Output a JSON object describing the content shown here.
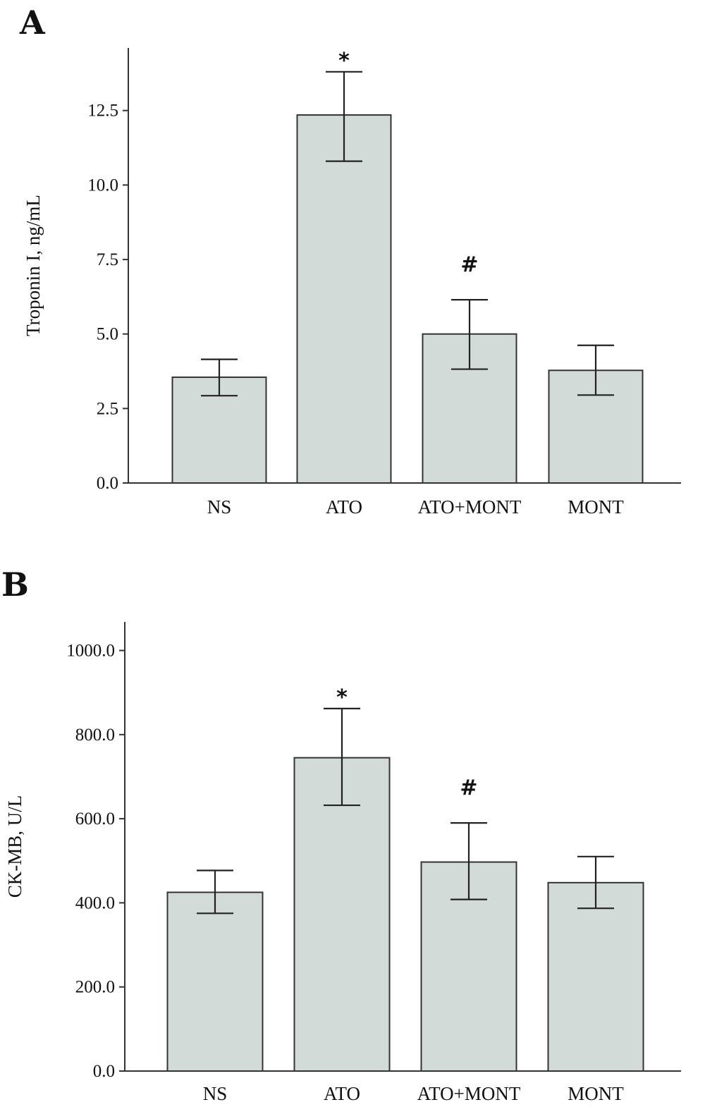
{
  "chart_data": [
    {
      "type": "bar",
      "panel": "A",
      "categories": [
        "NS",
        "ATO",
        "ATO+MONT",
        "MONT"
      ],
      "values": [
        3.55,
        12.35,
        5.0,
        3.78
      ],
      "errors": [
        [
          2.93,
          4.15
        ],
        [
          10.8,
          13.8
        ],
        [
          3.82,
          6.15
        ],
        [
          2.95,
          4.62
        ]
      ],
      "annotations": [
        "",
        "*",
        "#",
        ""
      ],
      "ylabel": "Troponin I, ng/mL",
      "xlabel": "",
      "ylim": [
        0,
        14.6
      ],
      "yticks": [
        0.0,
        2.5,
        5.0,
        7.5,
        10.0,
        12.5
      ],
      "ytick_labels": [
        "0.0",
        "2.5",
        "5.0",
        "7.5",
        "10.0",
        "12.5"
      ]
    },
    {
      "type": "bar",
      "panel": "B",
      "categories": [
        "NS",
        "ATO",
        "ATO+MONT",
        "MONT"
      ],
      "values": [
        425,
        745,
        497,
        448
      ],
      "errors": [
        [
          375,
          477
        ],
        [
          632,
          862
        ],
        [
          408,
          590
        ],
        [
          387,
          510
        ]
      ],
      "annotations": [
        "",
        "*",
        "#",
        ""
      ],
      "ylabel": "CK-MB, U/L",
      "xlabel": "",
      "ylim": [
        0,
        1068
      ],
      "yticks": [
        0,
        200,
        400,
        600,
        800,
        1000
      ],
      "ytick_labels": [
        "0.0",
        "200.0",
        "400.0",
        "600.0",
        "800.0",
        "1000.0"
      ]
    }
  ]
}
